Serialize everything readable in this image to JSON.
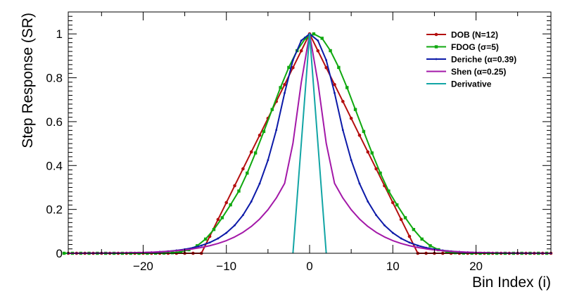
{
  "chart_data": {
    "type": "line",
    "xlabel": "Bin Index (i)",
    "ylabel": "Step Response (SR)",
    "xlim": [
      -29,
      29
    ],
    "ylim": [
      0,
      1.1
    ],
    "xticks": [
      -20,
      -10,
      0,
      10,
      20
    ],
    "yticks": [
      0,
      0.2,
      0.4,
      0.6,
      0.8,
      1
    ],
    "xtick_labels": [
      "−20",
      "−10",
      "0",
      "10",
      "20"
    ],
    "ytick_labels": [
      "0",
      "0.2",
      "0.4",
      "0.6",
      "0.8",
      "1"
    ],
    "grid": false,
    "legend_position": "top-right",
    "series": [
      {
        "name": "DOB (N=12)",
        "color": "#b40f0f",
        "marker": "dot",
        "x": [
          -29,
          -28,
          -27,
          -26,
          -25,
          -24,
          -23,
          -22,
          -21,
          -20,
          -19,
          -18,
          -17,
          -16,
          -15,
          -14,
          -13,
          -12,
          -11,
          -10,
          -9,
          -8,
          -7,
          -6,
          -5,
          -4,
          -3,
          -2,
          -1,
          0,
          1,
          2,
          3,
          4,
          5,
          6,
          7,
          8,
          9,
          10,
          11,
          12,
          13,
          14,
          15,
          16,
          17,
          18,
          19,
          20,
          21,
          22,
          23,
          24,
          25,
          26,
          27,
          28,
          29
        ],
        "y": [
          0,
          0,
          0,
          0,
          0,
          0,
          0,
          0,
          0,
          0,
          0,
          0,
          0,
          0,
          0,
          0,
          0,
          0.077,
          0.154,
          0.231,
          0.308,
          0.385,
          0.462,
          0.538,
          0.615,
          0.692,
          0.769,
          0.846,
          0.923,
          1,
          0.923,
          0.846,
          0.769,
          0.692,
          0.615,
          0.538,
          0.462,
          0.385,
          0.308,
          0.231,
          0.154,
          0.077,
          0,
          0,
          0,
          0,
          0,
          0,
          0,
          0,
          0,
          0,
          0,
          0,
          0,
          0,
          0,
          0,
          0
        ]
      },
      {
        "name": "FDOG (σ=5)",
        "color": "#10a810",
        "marker": "square",
        "x": [
          -29,
          -28,
          -27,
          -26,
          -25,
          -24,
          -23,
          -22,
          -21,
          -20,
          -19,
          -18,
          -17,
          -16,
          -15,
          -14,
          -13,
          -12,
          -11,
          -10,
          -9,
          -8,
          -7,
          -6,
          -5,
          -4,
          -3,
          -2,
          -1,
          0,
          1,
          2,
          3,
          4,
          5,
          6,
          7,
          8,
          9,
          10,
          11,
          12,
          13,
          14,
          15,
          16,
          17,
          18,
          19,
          20,
          21,
          22,
          23,
          24,
          25,
          26,
          27,
          28,
          29
        ],
        "y": [
          0,
          0,
          0,
          0,
          0,
          0,
          0,
          0,
          0,
          0,
          0,
          0.0003,
          0.0009,
          0.0025,
          0.0067,
          0.0161,
          0.0343,
          0.0647,
          0.1084,
          0.1621,
          0.2208,
          0.2836,
          0.3654,
          0.4573,
          0.5552,
          0.6554,
          0.7554,
          0.8471,
          0.9236,
          0.98,
          1.0,
          0.98,
          0.9236,
          0.8471,
          0.7554,
          0.6554,
          0.5552,
          0.4573,
          0.3654,
          0.2836,
          0.2208,
          0.1621,
          0.1084,
          0.0647,
          0.0343,
          0.0161,
          0.0067,
          0.0025,
          0.0009,
          0.0003,
          0,
          0,
          0,
          0,
          0,
          0,
          0,
          0,
          0
        ],
        "x_shift": -0.5
      },
      {
        "name": "Deriche (α=0.39)",
        "color": "#0c1aa8",
        "marker": "tick",
        "x": [
          -29,
          -28,
          -27,
          -26,
          -25,
          -24,
          -23,
          -22,
          -21,
          -20,
          -19,
          -18,
          -17,
          -16,
          -15,
          -14,
          -13,
          -12,
          -11,
          -10,
          -9,
          -8,
          -7,
          -6,
          -5,
          -4,
          -3,
          -2,
          -1,
          0,
          1,
          2,
          3,
          4,
          5,
          6,
          7,
          8,
          9,
          10,
          11,
          12,
          13,
          14,
          15,
          16,
          17,
          18,
          19,
          20,
          21,
          22,
          23,
          24,
          25,
          26,
          27,
          28,
          29
        ],
        "y": [
          0.0001,
          0.0002,
          0.0003,
          0.0004,
          0.0006,
          0.0008,
          0.0011,
          0.0016,
          0.0023,
          0.0033,
          0.0046,
          0.0066,
          0.0093,
          0.013,
          0.0182,
          0.0253,
          0.0353,
          0.0489,
          0.0676,
          0.093,
          0.1275,
          0.1739,
          0.2359,
          0.3177,
          0.4245,
          0.5616,
          0.7308,
          0.8804,
          0.9695,
          1,
          0.9695,
          0.8804,
          0.7308,
          0.5616,
          0.4245,
          0.3177,
          0.2359,
          0.1739,
          0.1275,
          0.093,
          0.0676,
          0.0489,
          0.0353,
          0.0253,
          0.0182,
          0.013,
          0.0093,
          0.0066,
          0.0046,
          0.0033,
          0.0023,
          0.0016,
          0.0011,
          0.0008,
          0.0006,
          0.0004,
          0.0003,
          0.0002,
          0.0001
        ]
      },
      {
        "name": "Shen (α=0.25)",
        "color": "#a318a8",
        "marker": "none",
        "x": [
          -29,
          -28,
          -27,
          -26,
          -25,
          -24,
          -23,
          -22,
          -21,
          -20,
          -19,
          -18,
          -17,
          -16,
          -15,
          -14,
          -13,
          -12,
          -11,
          -10,
          -9,
          -8,
          -7,
          -6,
          -5,
          -4,
          -3,
          -2,
          -1,
          0,
          1,
          2,
          3,
          4,
          5,
          6,
          7,
          8,
          9,
          10,
          11,
          12,
          13,
          14,
          15,
          16,
          17,
          18,
          19,
          20,
          21,
          22,
          23,
          24,
          25,
          26,
          27,
          28,
          29
        ],
        "y": [
          0.0002,
          0.0003,
          0.0004,
          0.0006,
          0.0008,
          0.0011,
          0.0015,
          0.002,
          0.0027,
          0.0037,
          0.0049,
          0.0066,
          0.0088,
          0.0117,
          0.0154,
          0.0202,
          0.0264,
          0.0344,
          0.0446,
          0.0577,
          0.0744,
          0.0956,
          0.1223,
          0.1561,
          0.1985,
          0.2518,
          0.3186,
          0.5012,
          0.7788,
          1,
          0.7788,
          0.5012,
          0.3186,
          0.2518,
          0.1985,
          0.1561,
          0.1223,
          0.0956,
          0.0744,
          0.0577,
          0.0446,
          0.0344,
          0.0264,
          0.0202,
          0.0154,
          0.0117,
          0.0088,
          0.0066,
          0.0049,
          0.0037,
          0.0027,
          0.002,
          0.0015,
          0.0011,
          0.0008,
          0.0006,
          0.0004,
          0.0003,
          0.0002
        ]
      },
      {
        "name": "Derivative",
        "color": "#12a5a5",
        "marker": "none",
        "x": [
          -2,
          0,
          2
        ],
        "y": [
          0,
          1,
          0
        ]
      }
    ]
  }
}
